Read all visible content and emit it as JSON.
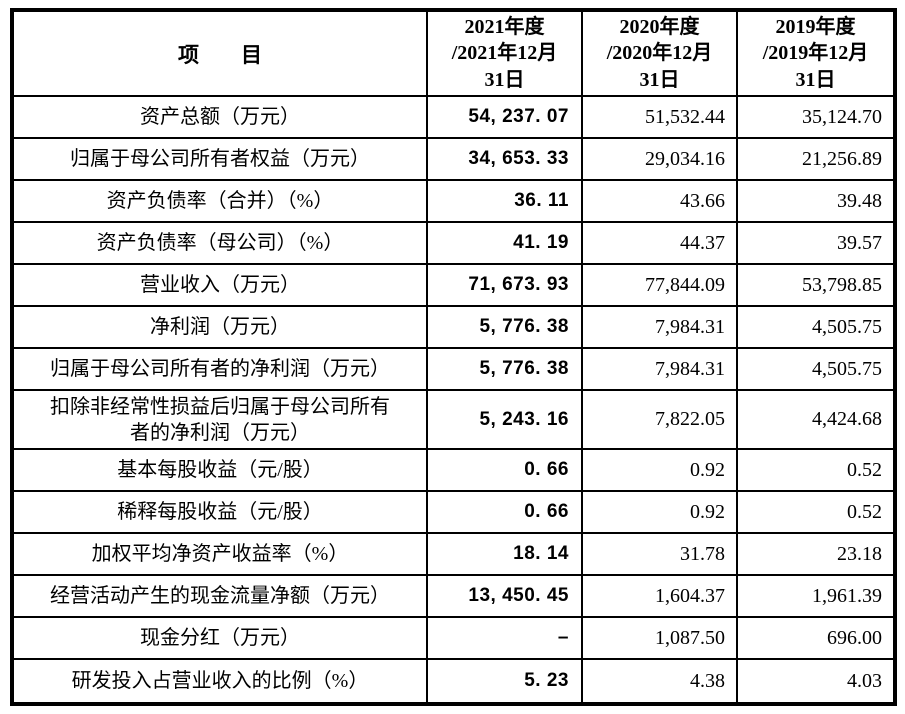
{
  "table": {
    "item_header": "项　　目",
    "period_headers": [
      "2021年度\n/2021年12月\n31日",
      "2020年度\n/2020年12月\n31日",
      "2019年度\n/2019年12月\n31日"
    ],
    "rows": [
      {
        "label": "资产总额（万元）",
        "y2021": "54, 237. 07",
        "y2020": "51,532.44",
        "y2019": "35,124.70"
      },
      {
        "label": "归属于母公司所有者权益（万元）",
        "y2021": "34, 653. 33",
        "y2020": "29,034.16",
        "y2019": "21,256.89"
      },
      {
        "label": "资产负债率（合并）（%）",
        "y2021": "36. 11",
        "y2020": "43.66",
        "y2019": "39.48"
      },
      {
        "label": "资产负债率（母公司）（%）",
        "y2021": "41. 19",
        "y2020": "44.37",
        "y2019": "39.57"
      },
      {
        "label": "营业收入（万元）",
        "y2021": "71, 673. 93",
        "y2020": "77,844.09",
        "y2019": "53,798.85"
      },
      {
        "label": "净利润（万元）",
        "y2021": "5, 776. 38",
        "y2020": "7,984.31",
        "y2019": "4,505.75"
      },
      {
        "label": "归属于母公司所有者的净利润（万元）",
        "y2021": "5, 776. 38",
        "y2020": "7,984.31",
        "y2019": "4,505.75"
      },
      {
        "label": "扣除非经常性损益后归属于母公司所有\n者的净利润（万元）",
        "y2021": "5, 243. 16",
        "y2020": "7,822.05",
        "y2019": "4,424.68"
      },
      {
        "label": "基本每股收益（元/股）",
        "y2021": "0. 66",
        "y2020": "0.92",
        "y2019": "0.52"
      },
      {
        "label": "稀释每股收益（元/股）",
        "y2021": "0. 66",
        "y2020": "0.92",
        "y2019": "0.52"
      },
      {
        "label": "加权平均净资产收益率（%）",
        "y2021": "18. 14",
        "y2020": "31.78",
        "y2019": "23.18"
      },
      {
        "label": "经营活动产生的现金流量净额（万元）",
        "y2021": "13, 450. 45",
        "y2020": "1,604.37",
        "y2019": "1,961.39"
      },
      {
        "label": "现金分红（万元）",
        "y2021": "–",
        "y2020": "1,087.50",
        "y2019": "696.00"
      },
      {
        "label": "研发投入占营业收入的比例（%）",
        "y2021": "5. 23",
        "y2020": "4.38",
        "y2019": "4.03"
      }
    ],
    "colors": {
      "border": "#000000",
      "text": "#000000",
      "background": "#ffffff"
    }
  }
}
